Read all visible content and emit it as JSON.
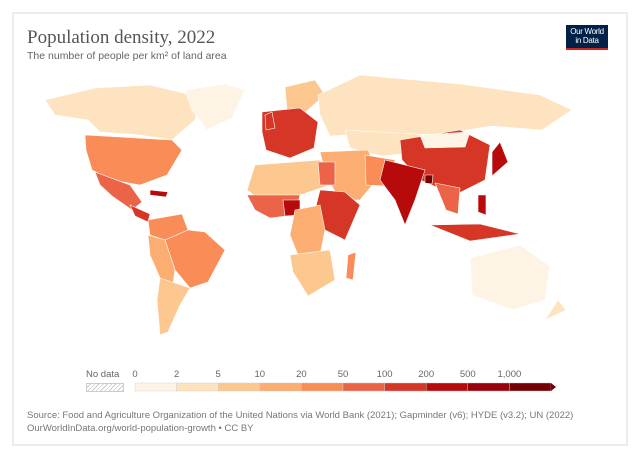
{
  "header": {
    "title": "Population density, 2022",
    "subtitle": "The number of people per km² of land area",
    "logo_text": "Our World in Data"
  },
  "legend": {
    "no_data_label": "No data",
    "ticks": [
      "0",
      "2",
      "5",
      "10",
      "20",
      "50",
      "100",
      "200",
      "500",
      "1,000"
    ],
    "bins": [
      {
        "range": "0-2",
        "color": "#fef4e6"
      },
      {
        "range": "2-5",
        "color": "#fde3c0"
      },
      {
        "range": "5-10",
        "color": "#fcc88f"
      },
      {
        "range": "10-20",
        "color": "#fbad72"
      },
      {
        "range": "20-50",
        "color": "#f98c57"
      },
      {
        "range": "50-100",
        "color": "#eb6448"
      },
      {
        "range": "100-200",
        "color": "#d53625"
      },
      {
        "range": "200-500",
        "color": "#b70a0b"
      },
      {
        "range": "500-1000",
        "color": "#98020a"
      },
      {
        "range": "1000+",
        "color": "#740006"
      }
    ]
  },
  "footer": {
    "source": "Source: Food and Agriculture Organization of the United Nations via World Bank (2021); Gapminder (v6); HYDE (v3.2); UN (2022)",
    "url": "OurWorldInData.org/world-population-growth • CC BY"
  }
}
